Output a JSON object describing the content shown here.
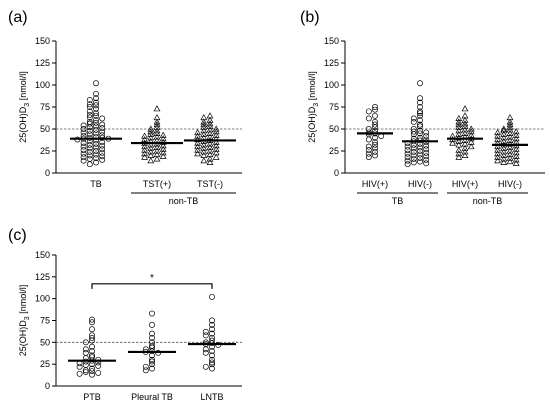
{
  "chart_data": [
    {
      "type": "scatter",
      "panel_label": "(a)",
      "ylabel": "25(OH)D3 [nmol/l]",
      "ylim": [
        0,
        150
      ],
      "yticks": [
        0,
        25,
        50,
        75,
        100,
        125,
        150
      ],
      "reference_line": 50,
      "categories": [
        "TB",
        "TST(+)",
        "TST(-)"
      ],
      "groups": [
        {
          "label": "non-TB",
          "members": [
            "TST(+)",
            "TST(-)"
          ]
        }
      ],
      "series": [
        {
          "category": "TB",
          "marker": "circle",
          "median": 39,
          "values": [
            102,
            90,
            85,
            83,
            80,
            78,
            77,
            75,
            73,
            70,
            68,
            66,
            65,
            63,
            62,
            60,
            58,
            57,
            56,
            55,
            54,
            53,
            52,
            51,
            50,
            49,
            48,
            47,
            46,
            45,
            44,
            43,
            42,
            41,
            40,
            40,
            39,
            39,
            38,
            37,
            36,
            35,
            34,
            33,
            32,
            31,
            30,
            29,
            28,
            27,
            26,
            25,
            24,
            23,
            22,
            21,
            20,
            19,
            18,
            17,
            16,
            15,
            14,
            12,
            10
          ]
        },
        {
          "category": "TST(+)",
          "marker": "triangle",
          "median": 34,
          "values": [
            73,
            63,
            58,
            55,
            52,
            50,
            48,
            47,
            45,
            44,
            43,
            42,
            41,
            40,
            39,
            38,
            37,
            36,
            35,
            34,
            33,
            32,
            31,
            30,
            29,
            28,
            27,
            26,
            25,
            24,
            23,
            22,
            21,
            20,
            19,
            18,
            16,
            14
          ]
        },
        {
          "category": "TST(-)",
          "marker": "triangle",
          "median": 37,
          "values": [
            65,
            63,
            60,
            58,
            56,
            55,
            53,
            52,
            50,
            49,
            48,
            47,
            46,
            45,
            44,
            43,
            42,
            41,
            40,
            39,
            38,
            37,
            36,
            35,
            34,
            33,
            32,
            31,
            30,
            29,
            28,
            27,
            26,
            25,
            24,
            23,
            22,
            21,
            20,
            18,
            16,
            14,
            12
          ]
        }
      ]
    },
    {
      "type": "scatter",
      "panel_label": "(b)",
      "ylabel": "25(OH)D3 [nmol/l]",
      "ylim": [
        0,
        150
      ],
      "yticks": [
        0,
        25,
        50,
        75,
        100,
        125,
        150
      ],
      "reference_line": 50,
      "categories": [
        "HIV(+)",
        "HIV(-)",
        "HIV(+)",
        "HIV(-)"
      ],
      "groups": [
        {
          "label": "TB",
          "members": [
            0,
            1
          ]
        },
        {
          "label": "non-TB",
          "members": [
            2,
            3
          ]
        }
      ],
      "series": [
        {
          "category": "HIV(+)",
          "group": "TB",
          "marker": "circle",
          "median": 45,
          "values": [
            75,
            72,
            70,
            65,
            62,
            58,
            55,
            52,
            50,
            48,
            46,
            45,
            44,
            42,
            40,
            38,
            35,
            32,
            30,
            28,
            26,
            24,
            22,
            20,
            18
          ]
        },
        {
          "category": "HIV(-)",
          "group": "TB",
          "marker": "circle",
          "median": 36,
          "values": [
            102,
            85,
            80,
            75,
            70,
            68,
            65,
            62,
            60,
            58,
            55,
            53,
            50,
            48,
            47,
            46,
            45,
            44,
            42,
            40,
            39,
            38,
            37,
            36,
            35,
            34,
            33,
            32,
            31,
            30,
            29,
            28,
            27,
            26,
            25,
            24,
            23,
            22,
            21,
            20,
            19,
            18,
            17,
            16,
            15,
            14,
            13,
            12,
            11,
            10
          ]
        },
        {
          "category": "HIV(+)",
          "group": "non-TB",
          "marker": "triangle",
          "median": 39,
          "values": [
            73,
            65,
            62,
            60,
            58,
            56,
            55,
            53,
            52,
            50,
            49,
            48,
            47,
            45,
            44,
            43,
            42,
            41,
            40,
            39,
            38,
            37,
            36,
            35,
            34,
            33,
            32,
            30,
            28,
            26,
            24,
            22,
            20,
            18
          ]
        },
        {
          "category": "HIV(-)",
          "group": "non-TB",
          "marker": "triangle",
          "median": 32,
          "values": [
            63,
            58,
            55,
            52,
            50,
            49,
            48,
            47,
            46,
            45,
            44,
            43,
            42,
            41,
            40,
            39,
            38,
            37,
            36,
            35,
            34,
            33,
            32,
            31,
            30,
            29,
            28,
            27,
            26,
            25,
            24,
            23,
            22,
            21,
            20,
            19,
            18,
            17,
            16,
            15,
            14,
            13,
            12,
            11
          ]
        }
      ]
    },
    {
      "type": "scatter",
      "panel_label": "(c)",
      "ylabel": "25(OH)D3 [nmol/l]",
      "ylim": [
        0,
        150
      ],
      "yticks": [
        0,
        25,
        50,
        75,
        100,
        125,
        150
      ],
      "reference_line": 50,
      "categories": [
        "PTB",
        "Pleural TB",
        "LNTB"
      ],
      "significance": {
        "from": "PTB",
        "to": "LNTB",
        "y": 117,
        "label": "*"
      },
      "series": [
        {
          "category": "PTB",
          "marker": "circle",
          "median": 29,
          "values": [
            76,
            73,
            65,
            58,
            55,
            52,
            50,
            45,
            42,
            40,
            38,
            35,
            33,
            32,
            30,
            29,
            28,
            27,
            26,
            25,
            24,
            23,
            22,
            20,
            18,
            17,
            16,
            15,
            14,
            13
          ]
        },
        {
          "category": "Pleural TB",
          "marker": "circle",
          "median": 39,
          "values": [
            83,
            70,
            60,
            55,
            50,
            46,
            44,
            42,
            40,
            39,
            38,
            35,
            30,
            28,
            25,
            22,
            20,
            18
          ]
        },
        {
          "category": "LNTB",
          "marker": "circle",
          "median": 48,
          "values": [
            102,
            75,
            70,
            65,
            62,
            60,
            58,
            55,
            52,
            50,
            49,
            48,
            47,
            45,
            42,
            40,
            38,
            35,
            30,
            27,
            25,
            22,
            20
          ]
        }
      ]
    }
  ]
}
